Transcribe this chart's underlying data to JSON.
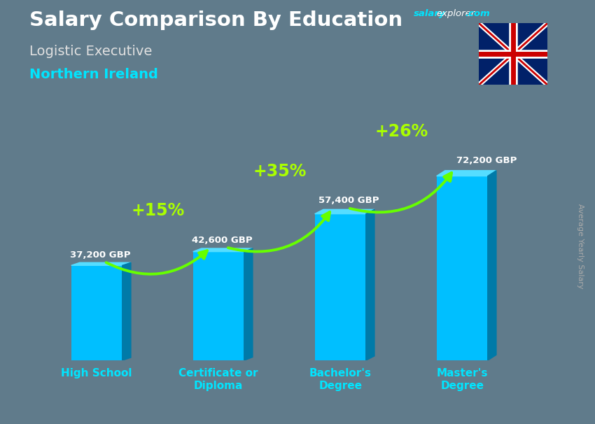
{
  "title_main": "Salary Comparison By Education",
  "title_sub1": "Logistic Executive",
  "title_sub2": "Northern Ireland",
  "ylabel": "Average Yearly Salary",
  "categories": [
    "High School",
    "Certificate or\nDiploma",
    "Bachelor's\nDegree",
    "Master's\nDegree"
  ],
  "values": [
    37200,
    42600,
    57400,
    72200
  ],
  "labels": [
    "37,200 GBP",
    "42,600 GBP",
    "57,400 GBP",
    "72,200 GBP"
  ],
  "pct_labels": [
    "+15%",
    "+35%",
    "+26%"
  ],
  "bar_color_face": "#00BFFF",
  "bar_color_right": "#007AA8",
  "bar_color_top": "#55DDFF",
  "bg_color": "#607B8B",
  "title_color": "#FFFFFF",
  "sub1_color": "#E0E0E0",
  "sub2_color": "#00E5FF",
  "label_color": "#FFFFFF",
  "pct_color": "#AAFF00",
  "arrow_color": "#66FF00",
  "xtick_color": "#00E5FF",
  "ylabel_color": "#AAAAAA",
  "site_salary_color": "#00E5FF",
  "site_explorer_color": "#FFFFFF",
  "site_com_color": "#00E5FF"
}
